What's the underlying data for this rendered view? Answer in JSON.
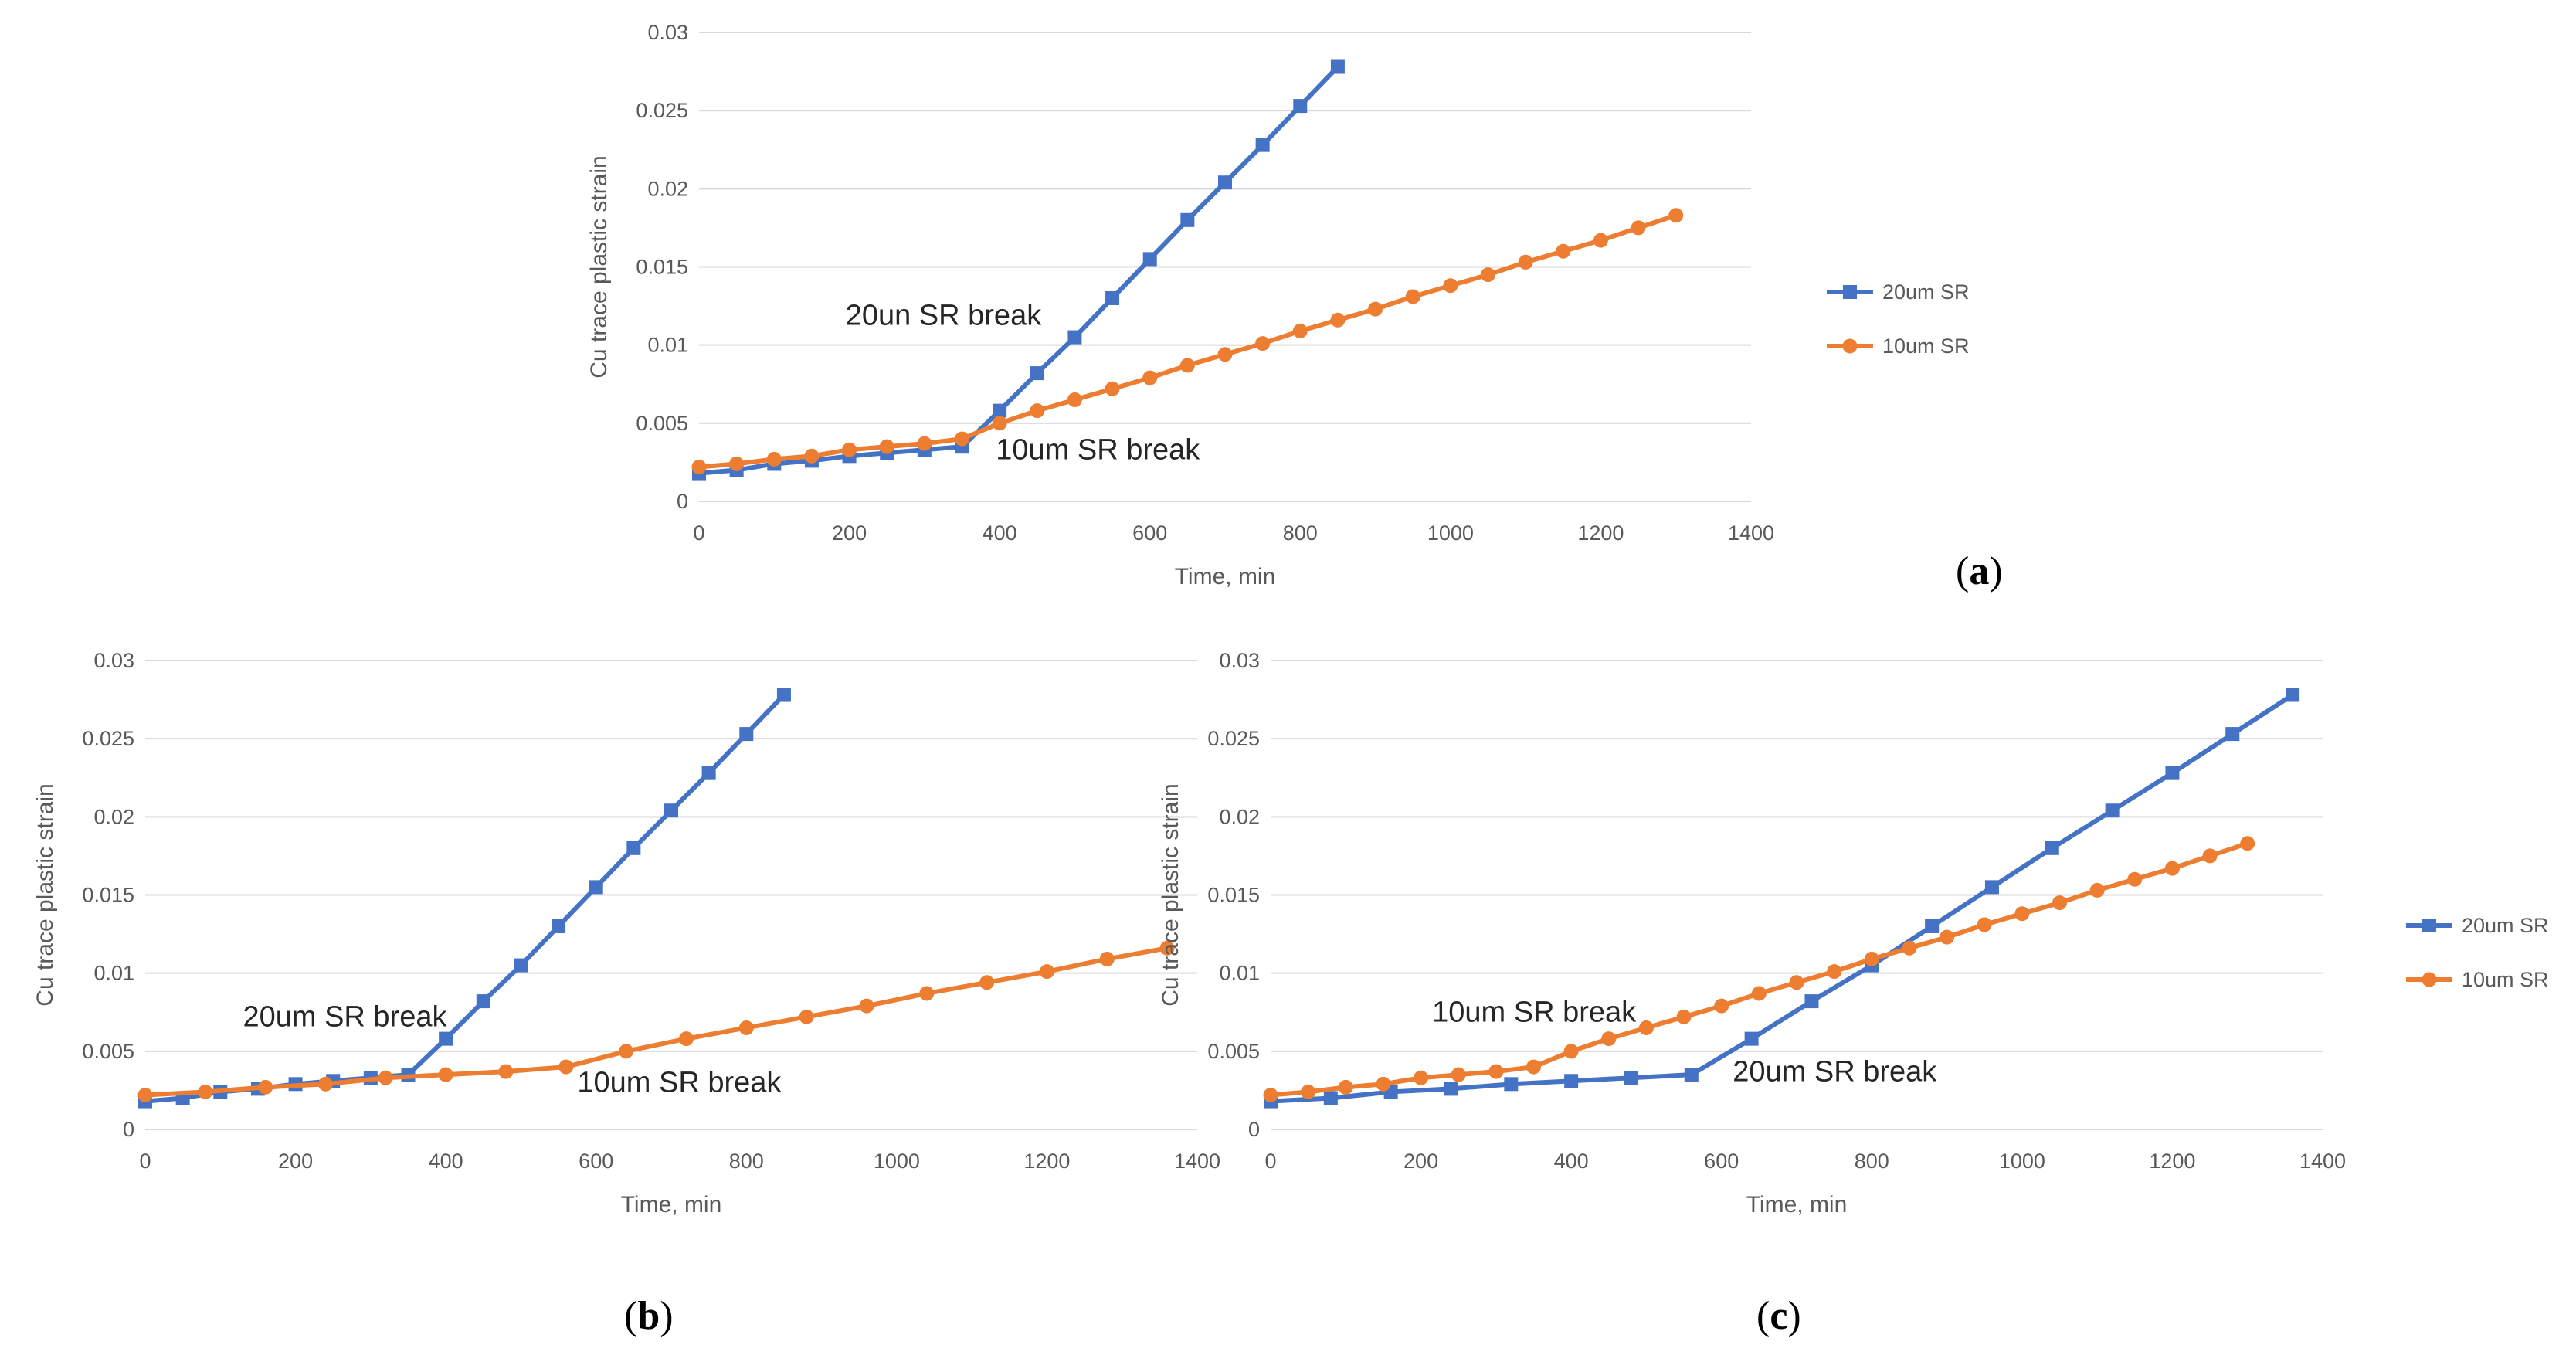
{
  "figure": {
    "panel_labels": [
      {
        "open": "(",
        "letter": "a",
        "close": ")"
      },
      {
        "open": "(",
        "letter": "b",
        "close": ")"
      },
      {
        "open": "(",
        "letter": "c",
        "close": ")"
      }
    ]
  },
  "chart_data": [
    {
      "type": "line",
      "panel": "a",
      "title": "",
      "xlabel": "Time, min",
      "ylabel": "Cu trace plastic strain",
      "xlim": [
        0,
        1400
      ],
      "ylim": [
        0,
        0.03
      ],
      "xticks": [
        0,
        200,
        400,
        600,
        800,
        1000,
        1200,
        1400
      ],
      "yticks": [
        0,
        0.005,
        0.01,
        0.015,
        0.02,
        0.025,
        0.03
      ],
      "ytick_labels": [
        "0",
        "0.005",
        "0.01",
        "0.015",
        "0.02",
        "0.025",
        "0.03"
      ],
      "xtick_labels": [
        "0",
        "200",
        "400",
        "600",
        "800",
        "1000",
        "1200",
        "1400"
      ],
      "legend": true,
      "legend_position": "right",
      "series": [
        {
          "name": "20um SR",
          "color": "#4472c4",
          "marker": "square",
          "x": [
            0,
            50,
            100,
            150,
            200,
            250,
            300,
            350,
            400,
            450,
            500,
            550,
            600,
            650,
            700,
            750,
            800,
            850
          ],
          "y": [
            0.0018,
            0.002,
            0.0024,
            0.0026,
            0.0029,
            0.0031,
            0.0033,
            0.0035,
            0.0058,
            0.0082,
            0.0105,
            0.013,
            0.0155,
            0.018,
            0.0204,
            0.0228,
            0.0253,
            0.0278
          ]
        },
        {
          "name": "10um SR",
          "color": "#ed7d31",
          "marker": "circle",
          "x": [
            0,
            50,
            100,
            150,
            200,
            250,
            300,
            350,
            400,
            450,
            500,
            550,
            600,
            650,
            700,
            750,
            800,
            850,
            900,
            950,
            1000,
            1050,
            1100,
            1150,
            1200,
            1250,
            1300
          ],
          "y": [
            0.0022,
            0.0024,
            0.0027,
            0.0029,
            0.0033,
            0.0035,
            0.0037,
            0.004,
            0.005,
            0.0058,
            0.0065,
            0.0072,
            0.0079,
            0.0087,
            0.0094,
            0.0101,
            0.0109,
            0.0116,
            0.0123,
            0.0131,
            0.0138,
            0.0145,
            0.0153,
            0.016,
            0.0167,
            0.0175,
            0.0183
          ]
        }
      ],
      "annotations": [
        {
          "text": "20un SR break",
          "x": 195,
          "y": 0.0113
        },
        {
          "text": "10um SR break",
          "x": 395,
          "y": 0.0027
        }
      ]
    },
    {
      "type": "line",
      "panel": "b",
      "title": "",
      "xlabel": "Time, min",
      "ylabel": "Cu trace plastic strain",
      "xlim": [
        0,
        1400
      ],
      "ylim": [
        0,
        0.03
      ],
      "xticks": [
        0,
        200,
        400,
        600,
        800,
        1000,
        1200,
        1400
      ],
      "yticks": [
        0,
        0.005,
        0.01,
        0.015,
        0.02,
        0.025,
        0.03
      ],
      "ytick_labels": [
        "0",
        "0.005",
        "0.01",
        "0.015",
        "0.02",
        "0.025",
        "0.03"
      ],
      "xtick_labels": [
        "0",
        "200",
        "400",
        "600",
        "800",
        "1000",
        "1200",
        "1400"
      ],
      "legend": false,
      "series": [
        {
          "name": "20um SR",
          "color": "#4472c4",
          "marker": "square",
          "x": [
            0,
            50,
            100,
            150,
            200,
            250,
            300,
            350,
            400,
            450,
            500,
            550,
            600,
            650,
            700,
            750,
            800,
            850
          ],
          "y": [
            0.0018,
            0.002,
            0.0024,
            0.0026,
            0.0029,
            0.0031,
            0.0033,
            0.0035,
            0.0058,
            0.0082,
            0.0105,
            0.013,
            0.0155,
            0.018,
            0.0204,
            0.0228,
            0.0253,
            0.0278
          ]
        },
        {
          "name": "10um SR",
          "color": "#ed7d31",
          "marker": "circle",
          "x": [
            0,
            80,
            160,
            240,
            320,
            400,
            480,
            560,
            640,
            720,
            800,
            880,
            960,
            1040,
            1120,
            1200,
            1280,
            1360
          ],
          "y": [
            0.0022,
            0.0024,
            0.0027,
            0.0029,
            0.0033,
            0.0035,
            0.0037,
            0.004,
            0.005,
            0.0058,
            0.0065,
            0.0072,
            0.0079,
            0.0087,
            0.0094,
            0.0101,
            0.0109,
            0.0116
          ]
        }
      ],
      "annotations": [
        {
          "text": "20um SR break",
          "x": 130,
          "y": 0.0066
        },
        {
          "text": "10um SR break",
          "x": 575,
          "y": 0.0024
        }
      ]
    },
    {
      "type": "line",
      "panel": "c",
      "title": "",
      "xlabel": "Time, min",
      "ylabel": "Cu trace plastic strain",
      "xlim": [
        0,
        1400
      ],
      "ylim": [
        0,
        0.03
      ],
      "xticks": [
        0,
        200,
        400,
        600,
        800,
        1000,
        1200,
        1400
      ],
      "yticks": [
        0,
        0.005,
        0.01,
        0.015,
        0.02,
        0.025,
        0.03
      ],
      "ytick_labels": [
        "0",
        "0.005",
        "0.01",
        "0.015",
        "0.02",
        "0.025",
        "0.03"
      ],
      "xtick_labels": [
        "0",
        "200",
        "400",
        "600",
        "800",
        "1000",
        "1200",
        "1400"
      ],
      "legend": true,
      "legend_position": "right",
      "series": [
        {
          "name": "20um SR",
          "color": "#4472c4",
          "marker": "square",
          "x": [
            0,
            80,
            160,
            240,
            320,
            400,
            480,
            560,
            640,
            720,
            800,
            880,
            960,
            1040,
            1120,
            1200,
            1280,
            1360
          ],
          "y": [
            0.0018,
            0.002,
            0.0024,
            0.0026,
            0.0029,
            0.0031,
            0.0033,
            0.0035,
            0.0058,
            0.0082,
            0.0105,
            0.013,
            0.0155,
            0.018,
            0.0204,
            0.0228,
            0.0253,
            0.0278
          ]
        },
        {
          "name": "10um SR",
          "color": "#ed7d31",
          "marker": "circle",
          "x": [
            0,
            50,
            100,
            150,
            200,
            250,
            300,
            350,
            400,
            450,
            500,
            550,
            600,
            650,
            700,
            750,
            800,
            850,
            900,
            950,
            1000,
            1050,
            1100,
            1150,
            1200,
            1250,
            1300
          ],
          "y": [
            0.0022,
            0.0024,
            0.0027,
            0.0029,
            0.0033,
            0.0035,
            0.0037,
            0.004,
            0.005,
            0.0058,
            0.0065,
            0.0072,
            0.0079,
            0.0087,
            0.0094,
            0.0101,
            0.0109,
            0.0116,
            0.0123,
            0.0131,
            0.0138,
            0.0145,
            0.0153,
            0.016,
            0.0167,
            0.0175,
            0.0183
          ]
        }
      ],
      "annotations": [
        {
          "text": "10um SR break",
          "x": 215,
          "y": 0.0069
        },
        {
          "text": "20um SR break",
          "x": 615,
          "y": 0.0031
        }
      ]
    }
  ]
}
